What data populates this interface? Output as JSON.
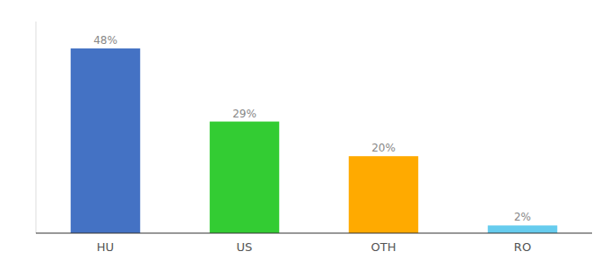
{
  "chart_data": {
    "type": "bar",
    "categories": [
      "HU",
      "US",
      "OTH",
      "RO"
    ],
    "values": [
      48,
      29,
      20,
      2
    ],
    "value_labels": [
      "48%",
      "29%",
      "20%",
      "2%"
    ],
    "colors": [
      "#4472c4",
      "#33cc33",
      "#ffaa00",
      "#66ccee"
    ],
    "ylim": [
      0,
      55
    ],
    "data_labels": true,
    "tick_labels": "x"
  }
}
